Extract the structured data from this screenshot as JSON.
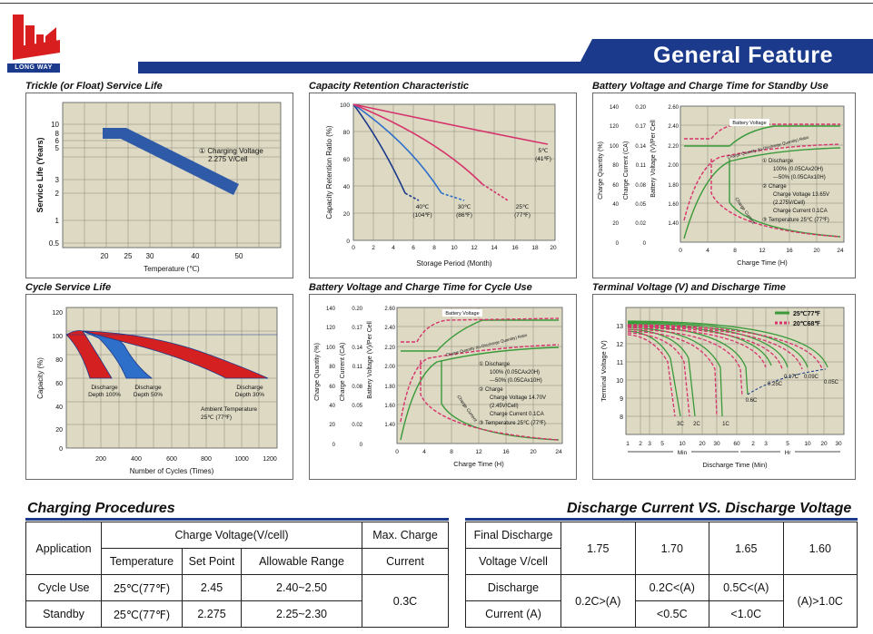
{
  "header": {
    "title": "General Feature",
    "logo_text": "LONG WAY"
  },
  "panels": {
    "trickle": {
      "title": "Trickle (or Float) Service Life",
      "ylabel": "Service Life (Years)",
      "xlabel": "Temperature (℃)",
      "yticks": [
        "10",
        "8",
        "6",
        "5",
        "3",
        "2",
        "1",
        "0.5"
      ],
      "xticks": [
        "20",
        "25",
        "30",
        "40",
        "50"
      ],
      "note1": "① Charging Voltage",
      "note2": "2.275 V/Cell"
    },
    "capacity": {
      "title": "Capacity  Retention  Characteristic",
      "ylabel": "Capacity Retention Ratio (%)",
      "xlabel": "Storage Period (Month)",
      "yticks": [
        "100",
        "80",
        "60",
        "40",
        "20",
        "0"
      ],
      "xticks": [
        "0",
        "2",
        "4",
        "6",
        "8",
        "10",
        "12",
        "14",
        "16",
        "18",
        "20"
      ],
      "curves": [
        {
          "c": "40℃",
          "f": "(104℉)"
        },
        {
          "c": "30℃",
          "f": "(86℉)"
        },
        {
          "c": "25℃",
          "f": "(77℉)"
        },
        {
          "c": "5℃",
          "f": "(41℉)"
        }
      ]
    },
    "standby": {
      "title": "Battery Voltage and Charge Time for Standby Use",
      "yl1": "Charge Quantity (%)",
      "yl2": "Charge Current (CA)",
      "yl3": "Battery Voltage (V)/Per Cell",
      "xlabel": "Charge Time (H)",
      "q": [
        "140",
        "120",
        "100",
        "80",
        "60",
        "40",
        "20",
        "0"
      ],
      "ca": [
        "0.20",
        "0.17",
        "0.14",
        "0.11",
        "0.08",
        "0.05",
        "0.02",
        "0"
      ],
      "v": [
        "2.60",
        "2.40",
        "2.20",
        "2.00",
        "1.80",
        "1.60",
        "1.40"
      ],
      "xticks": [
        "0",
        "4",
        "8",
        "12",
        "16",
        "20",
        "24"
      ],
      "battery_voltage": "Battery Voltage",
      "charge_qty_label": "Charge Quantity (to-Discharge Quantity) Ratio",
      "charge_current": "Charge Current",
      "notes": [
        "① Discharge",
        "100% (0.05CAx20H)",
        "---50% (0.05CAx10H)",
        "② Charge",
        "Charge Voltage 13.65V",
        "(2.275V/Cell)",
        "Charge Current 0.1CA",
        "③ Temperature 25℃ (77℉)"
      ]
    },
    "cycle_life": {
      "title": "Cycle Service Life",
      "ylabel": "Capacity (%)",
      "xlabel": "Number of Cycles (Times)",
      "yticks": [
        "120",
        "100",
        "80",
        "60",
        "40",
        "20",
        "0"
      ],
      "xticks": [
        "200",
        "400",
        "600",
        "800",
        "1000",
        "1200"
      ],
      "labels": [
        {
          "a": "Discharge",
          "b": "Depth 100%"
        },
        {
          "a": "Discharge",
          "b": "Depth 50%"
        },
        {
          "a": "Discharge",
          "b": "Depth 30%"
        }
      ],
      "ambient1": "Ambient Temperature",
      "ambient2": "25℃ (77℉)"
    },
    "cycle_use": {
      "title": "Battery Voltage and Charge Time for Cycle Use",
      "yl1": "Charge Quantity (%)",
      "yl2": "Charge Current (CA)",
      "yl3": "Battery Voltage (V)/Per Cell",
      "xlabel": "Charge Time (H)",
      "q": [
        "140",
        "120",
        "100",
        "80",
        "60",
        "40",
        "20",
        "0"
      ],
      "ca": [
        "0.20",
        "0.17",
        "0.14",
        "0.11",
        "0.08",
        "0.05",
        "0.02",
        "0"
      ],
      "v": [
        "2.60",
        "2.40",
        "2.20",
        "2.00",
        "1.80",
        "1.60",
        "1.40"
      ],
      "xticks": [
        "0",
        "4",
        "8",
        "12",
        "16",
        "20",
        "24"
      ],
      "battery_voltage": "Battery Voltage",
      "charge_qty_label": "Charge Quantity (to-Discharge Quantity) Ratio",
      "charge_current": "Charge Current",
      "notes": [
        "① Discharge",
        "100% (0.05CAx20H)",
        "---50% (0.05CAx10H)",
        "② Charge",
        "Charge Voltage 14.70V",
        "(2.45V/Cell)",
        "Charge Current 0.1CA",
        "③ Temperature 25℃ (77℉)"
      ]
    },
    "terminal": {
      "title": "Terminal Voltage (V) and Discharge Time",
      "ylabel": "Terminal Voltage (V)",
      "xlabel": "Discharge Time (Min)",
      "yticks": [
        "13",
        "12",
        "11",
        "10",
        "9",
        "8"
      ],
      "xticks_min": [
        "1",
        "2",
        "3",
        "5",
        "10",
        "20",
        "30",
        "60"
      ],
      "xticks_hr": [
        "2",
        "3",
        "5",
        "10",
        "20",
        "30"
      ],
      "min_label": "Min",
      "hr_label": "Hr",
      "legend": [
        "25℃77℉",
        "20℃68℉"
      ],
      "rates": [
        "3C",
        "2C",
        "1C",
        "0.6C",
        "0.25C",
        "0.17C",
        "0.09C",
        "0.05C"
      ]
    }
  },
  "charging": {
    "title": "Charging Procedures",
    "h_application": "Application",
    "h_voltage": "Charge Voltage(V/cell)",
    "h_max1": "Max. Charge",
    "h_max2": "Current",
    "h_temperature": "Temperature",
    "h_setpoint": "Set Point",
    "h_range": "Allowable Range",
    "rows": [
      {
        "app": "Cycle Use",
        "temp": "25℃(77℉)",
        "set": "2.45",
        "range": "2.40~2.50"
      },
      {
        "app": "Standby",
        "temp": "25℃(77℉)",
        "set": "2.275",
        "range": "2.25~2.30"
      }
    ],
    "max_value": "0.3C"
  },
  "discharge": {
    "title": "Discharge Current VS. Discharge Voltage",
    "h1a": "Final Discharge",
    "h1b": "Voltage V/cell",
    "voltages": [
      "1.75",
      "1.70",
      "1.65",
      "1.60"
    ],
    "h2a": "Discharge",
    "h2b": "Current (A)",
    "currents": [
      {
        "a": "0.2C>(A)",
        "b": ""
      },
      {
        "a": "0.2C<(A)",
        "b": "<0.5C"
      },
      {
        "a": "0.5C<(A)",
        "b": "<1.0C"
      },
      {
        "a": "(A)>1.0C",
        "b": ""
      }
    ]
  },
  "colors": {
    "navy": "#1b3a8c",
    "grid_bg": "#ddd9c3",
    "magenta": "#d6336c",
    "green": "#3a9a3a",
    "red": "#d42020",
    "blue": "#2e6fc9"
  }
}
